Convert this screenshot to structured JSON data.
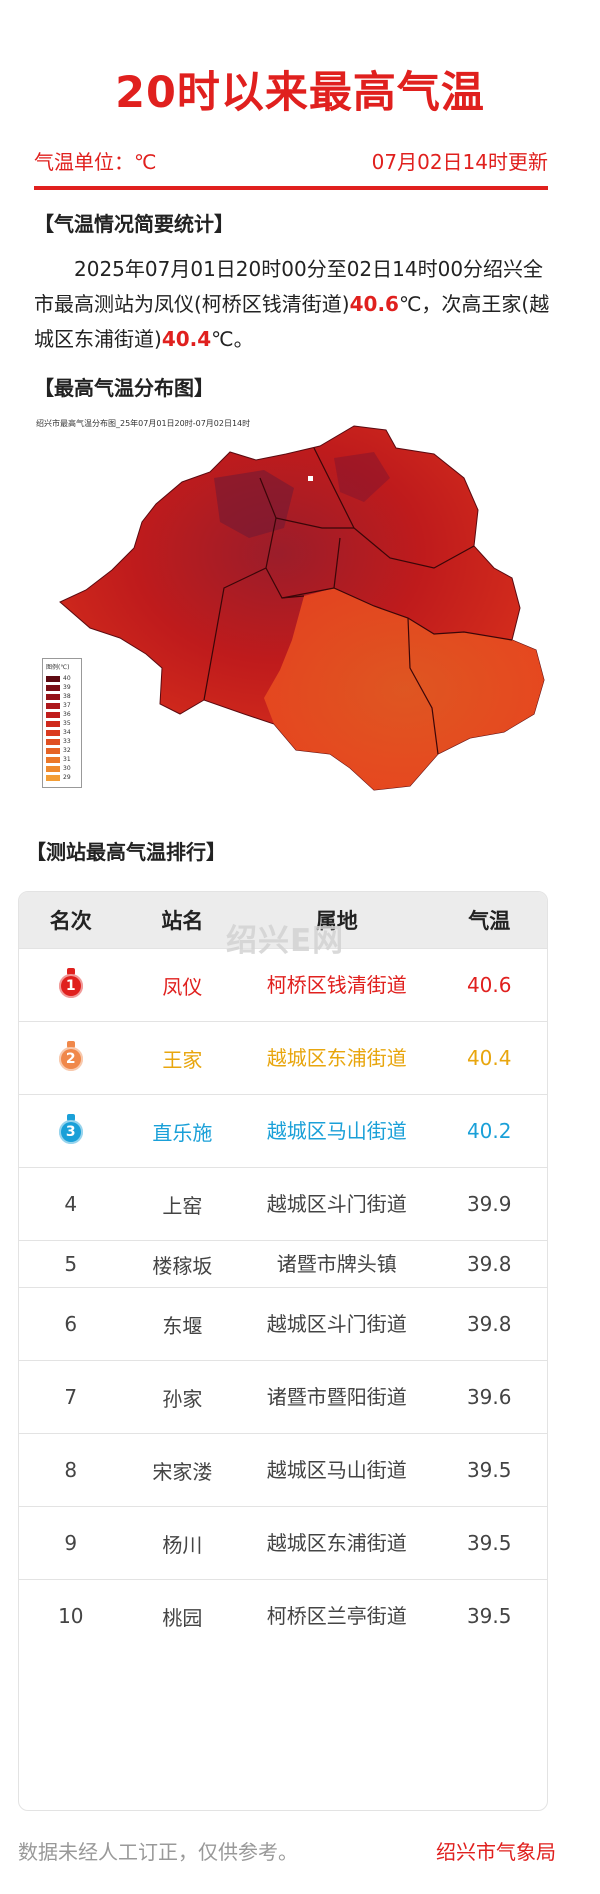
{
  "title": "20时以来最高气温",
  "unit_label": "气温单位：℃",
  "update_time": "07月02日14时更新",
  "summary_section": {
    "heading": "【气温情况简要统计】",
    "text_a": "2025年07月01日20时00分至02日14时00分绍兴全市最高测站为凤仪(柯桥区钱清街道)",
    "highest_value": "40.6",
    "text_b": "℃，次高王家(越城区东浦街道)",
    "second_value": "40.4",
    "text_c": "℃。"
  },
  "map_section": {
    "heading": "【最高气温分布图】",
    "caption": "绍兴市最高气温分布图_25年07月01日20时-07月02日14时",
    "legend_title": "图例(℃)",
    "legend": [
      {
        "label": "40",
        "color": "#5e0a12"
      },
      {
        "label": "39",
        "color": "#7a0e16"
      },
      {
        "label": "38",
        "color": "#951219"
      },
      {
        "label": "37",
        "color": "#ad171b"
      },
      {
        "label": "36",
        "color": "#c01d1c"
      },
      {
        "label": "35",
        "color": "#cf2a1d"
      },
      {
        "label": "34",
        "color": "#da3a1f"
      },
      {
        "label": "33",
        "color": "#e04f22"
      },
      {
        "label": "32",
        "color": "#e66325"
      },
      {
        "label": "31",
        "color": "#eb7729"
      },
      {
        "label": "30",
        "color": "#ef8a2e"
      },
      {
        "label": "29",
        "color": "#f39d35"
      }
    ]
  },
  "ranking_section": {
    "heading": "【测站最高气温排行】",
    "headers": {
      "rank": "名次",
      "station": "站名",
      "area": "属地",
      "temp": "气温"
    },
    "watermark": "绍兴E网",
    "rows": [
      {
        "rank": "1",
        "station": "凤仪",
        "area": "柯桥区钱清街道",
        "temp": "40.6",
        "color": "#e0201e",
        "medal_color": "#e0201e"
      },
      {
        "rank": "2",
        "station": "王家",
        "area": "越城区东浦街道",
        "temp": "40.4",
        "color": "#e8a60e",
        "medal_color": "#f0884a"
      },
      {
        "rank": "3",
        "station": "直乐施",
        "area": "越城区马山街道",
        "temp": "40.2",
        "color": "#1aa0d8",
        "medal_color": "#1aa0d8"
      },
      {
        "rank": "4",
        "station": "上窑",
        "area": "越城区斗门街道",
        "temp": "39.9"
      },
      {
        "rank": "5",
        "station": "楼稼坂",
        "area": "诸暨市牌头镇",
        "temp": "39.8"
      },
      {
        "rank": "6",
        "station": "东堰",
        "area": "越城区斗门街道",
        "temp": "39.8"
      },
      {
        "rank": "7",
        "station": "孙家",
        "area": "诸暨市暨阳街道",
        "temp": "39.6"
      },
      {
        "rank": "8",
        "station": "宋家溇",
        "area": "越城区马山街道",
        "temp": "39.5"
      },
      {
        "rank": "9",
        "station": "杨川",
        "area": "越城区东浦街道",
        "temp": "39.5"
      },
      {
        "rank": "10",
        "station": "桃园",
        "area": "柯桥区兰亭街道",
        "temp": "39.5"
      }
    ]
  },
  "footer": {
    "disclaimer": "数据未经人工订正，仅供参考。",
    "source": "绍兴市气象局"
  }
}
